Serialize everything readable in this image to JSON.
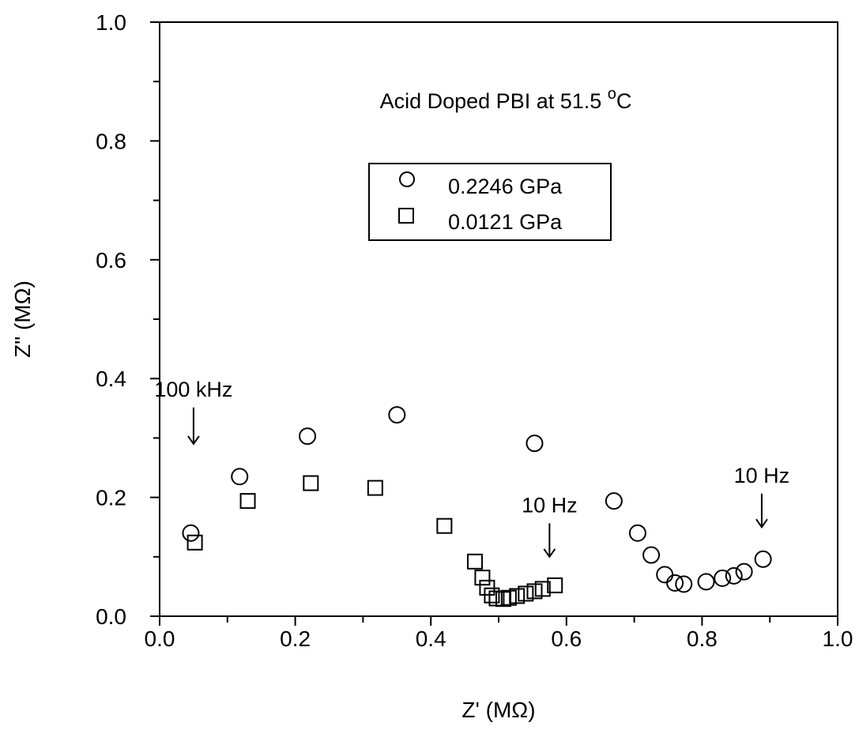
{
  "chart_data": {
    "type": "scatter",
    "title": "Acid Doped PBI at 51.5 °C",
    "title_parts": {
      "main": "Acid Doped PBI at 51.5 ",
      "sup": "o",
      "unit": "C"
    },
    "xlabel": "Z' (MΩ)",
    "ylabel": "Z\" (MΩ)",
    "xlim": [
      0.0,
      1.0
    ],
    "ylim": [
      0.0,
      1.0
    ],
    "x_ticks": [
      "0.0",
      "0.2",
      "0.4",
      "0.6",
      "0.8",
      "1.0"
    ],
    "y_ticks": [
      "0.0",
      "0.2",
      "0.4",
      "0.6",
      "0.8",
      "1.0"
    ],
    "grid": false,
    "legend_position": "upper-center",
    "series": [
      {
        "name": "0.2246 GPa",
        "marker": "circle",
        "points": [
          [
            0.046,
            0.14
          ],
          [
            0.118,
            0.235
          ],
          [
            0.218,
            0.303
          ],
          [
            0.35,
            0.339
          ],
          [
            0.553,
            0.291
          ],
          [
            0.67,
            0.194
          ],
          [
            0.705,
            0.14
          ],
          [
            0.725,
            0.103
          ],
          [
            0.745,
            0.07
          ],
          [
            0.76,
            0.056
          ],
          [
            0.773,
            0.054
          ],
          [
            0.806,
            0.058
          ],
          [
            0.83,
            0.064
          ],
          [
            0.847,
            0.068
          ],
          [
            0.862,
            0.075
          ],
          [
            0.89,
            0.096
          ]
        ]
      },
      {
        "name": "0.0121 GPa",
        "marker": "square",
        "points": [
          [
            0.052,
            0.124
          ],
          [
            0.13,
            0.194
          ],
          [
            0.223,
            0.224
          ],
          [
            0.318,
            0.216
          ],
          [
            0.42,
            0.152
          ],
          [
            0.465,
            0.092
          ],
          [
            0.476,
            0.065
          ],
          [
            0.483,
            0.048
          ],
          [
            0.49,
            0.035
          ],
          [
            0.497,
            0.03
          ],
          [
            0.507,
            0.029
          ],
          [
            0.515,
            0.031
          ],
          [
            0.527,
            0.034
          ],
          [
            0.54,
            0.038
          ],
          [
            0.553,
            0.042
          ],
          [
            0.565,
            0.046
          ],
          [
            0.583,
            0.052
          ]
        ]
      }
    ],
    "annotations": [
      {
        "text": "100 kHz",
        "at": [
          0.05,
          0.37
        ],
        "arrow_to": [
          0.05,
          0.29
        ]
      },
      {
        "text": "10 Hz",
        "at": [
          0.575,
          0.175
        ],
        "arrow_to": [
          0.575,
          0.1
        ]
      },
      {
        "text": "10 Hz",
        "at": [
          0.888,
          0.225
        ],
        "arrow_to": [
          0.888,
          0.15
        ]
      }
    ]
  }
}
